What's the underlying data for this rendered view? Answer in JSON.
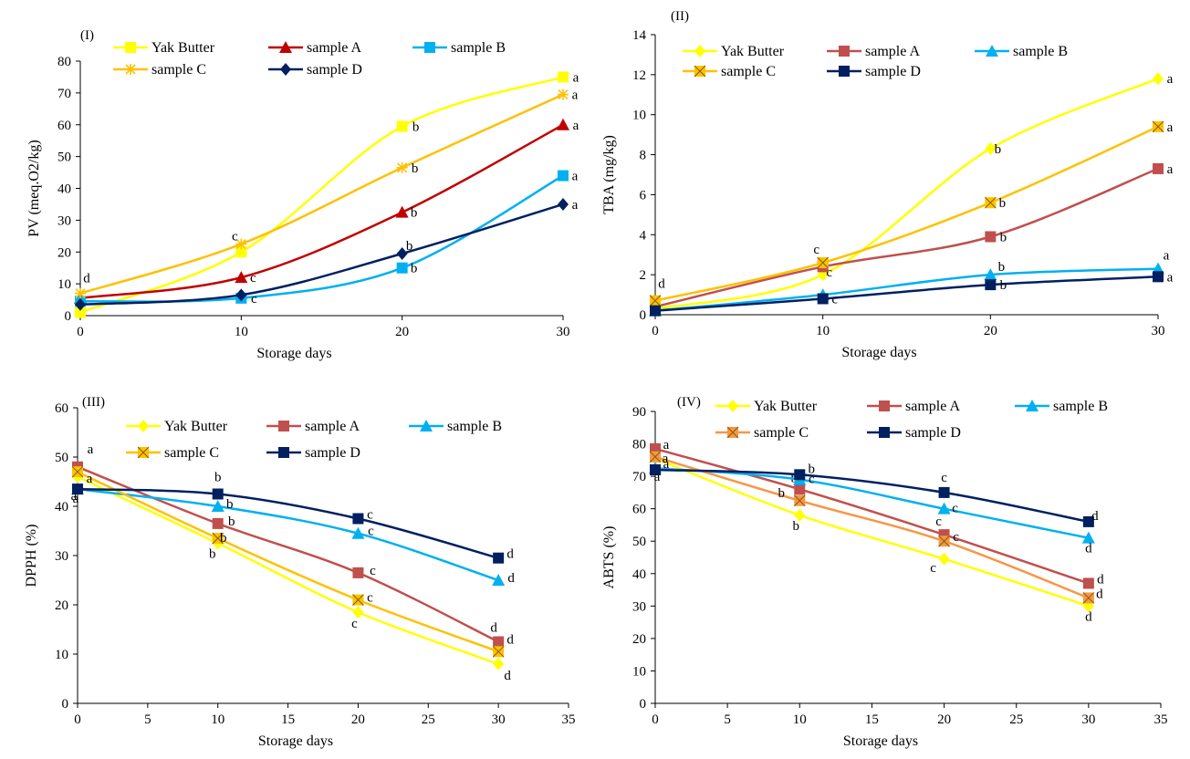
{
  "chart_data": [
    {
      "type": "line",
      "panel_label": "(I)",
      "xlabel": "Storage days",
      "ylabel": "PV (meq.O2/kg)",
      "xlim": [
        0,
        30
      ],
      "ylim": [
        0,
        80
      ],
      "xticks": [
        0,
        10,
        20,
        30
      ],
      "yticks": [
        0,
        10,
        20,
        30,
        40,
        50,
        60,
        70,
        80
      ],
      "grid": false,
      "legend_position": "top",
      "x": [
        0,
        10,
        20,
        30
      ],
      "series": [
        {
          "name": "Yak Butter",
          "color": "#FFFF00",
          "marker": "square",
          "values": [
            1,
            20,
            59.5,
            75
          ],
          "labels": [
            "",
            "",
            "b",
            "a"
          ]
        },
        {
          "name": "sample A",
          "color": "#C00000",
          "marker": "triangle",
          "values": [
            5.5,
            12,
            32.5,
            60
          ],
          "labels": [
            "",
            "c",
            "b",
            "a"
          ]
        },
        {
          "name": "sample B",
          "color": "#00B0F0",
          "marker": "square",
          "values": [
            4.5,
            5.5,
            15,
            44
          ],
          "labels": [
            "",
            "c",
            "b",
            "a"
          ]
        },
        {
          "name": "sample C",
          "color": "#FFC000",
          "marker": "star",
          "values": [
            7,
            22.5,
            46.5,
            69.5
          ],
          "labels": [
            "d",
            "c",
            "b",
            "a"
          ]
        },
        {
          "name": "sample D",
          "color": "#002060",
          "marker": "diamond",
          "values": [
            3.5,
            6.5,
            19.5,
            35
          ],
          "labels": [
            "",
            "",
            "b",
            "a"
          ]
        }
      ]
    },
    {
      "type": "line",
      "panel_label": "(II)",
      "xlabel": "Storage days",
      "ylabel": "TBA (mg/kg)",
      "xlim": [
        0,
        30
      ],
      "ylim": [
        0,
        14
      ],
      "xticks": [
        0,
        10,
        20,
        30
      ],
      "yticks": [
        0,
        2,
        4,
        6,
        8,
        10,
        12,
        14
      ],
      "grid": false,
      "legend_position": "top",
      "x": [
        0,
        10,
        20,
        30
      ],
      "series": [
        {
          "name": "Yak Butter",
          "color": "#FFFF00",
          "marker": "diamond",
          "values": [
            0.3,
            2.0,
            8.3,
            11.8
          ],
          "labels": [
            "",
            "c",
            "b",
            "a"
          ]
        },
        {
          "name": "sample A",
          "color": "#C0504D",
          "marker": "square",
          "values": [
            0.4,
            2.4,
            3.9,
            7.3
          ],
          "labels": [
            "",
            "",
            "b",
            "a"
          ]
        },
        {
          "name": "sample B",
          "color": "#00B0F0",
          "marker": "triangle",
          "values": [
            0.2,
            1.0,
            2.0,
            2.3
          ],
          "labels": [
            "",
            "",
            "b",
            "a"
          ]
        },
        {
          "name": "sample C",
          "color": "#FFC000",
          "marker": "xsquare",
          "values": [
            0.7,
            2.6,
            5.6,
            9.4
          ],
          "labels": [
            "d",
            "c",
            "b",
            "a"
          ]
        },
        {
          "name": "sample D",
          "color": "#002060",
          "marker": "square",
          "values": [
            0.2,
            0.8,
            1.5,
            1.9
          ],
          "labels": [
            "",
            "c",
            "b",
            "a"
          ]
        }
      ]
    },
    {
      "type": "line",
      "panel_label": "(III)",
      "xlabel": "Storage days",
      "ylabel": "DPPH (%)",
      "xlim": [
        0,
        35
      ],
      "ylim": [
        0,
        60
      ],
      "xticks": [
        0,
        5,
        10,
        15,
        20,
        25,
        30,
        35
      ],
      "yticks": [
        0,
        10,
        20,
        30,
        40,
        50,
        60
      ],
      "grid": false,
      "legend_position": "top",
      "x": [
        0,
        10,
        20,
        30
      ],
      "series": [
        {
          "name": "Yak Butter",
          "color": "#FFFF00",
          "marker": "diamond",
          "values": [
            46,
            32.5,
            18.5,
            8
          ],
          "labels": [
            "",
            "b",
            "c",
            "d"
          ]
        },
        {
          "name": "sample A",
          "color": "#C0504D",
          "marker": "square",
          "values": [
            48,
            36.5,
            26.5,
            12.5
          ],
          "labels": [
            "a",
            "b",
            "c",
            "d"
          ]
        },
        {
          "name": "sample B",
          "color": "#00B0F0",
          "marker": "triangle",
          "values": [
            43.5,
            40,
            34.5,
            25
          ],
          "labels": [
            "a",
            "b",
            "c",
            "d"
          ]
        },
        {
          "name": "sample C",
          "color": "#FFC000",
          "marker": "xsquare",
          "values": [
            47,
            33.5,
            21,
            10.5
          ],
          "labels": [
            "a",
            "b",
            "c",
            "d"
          ]
        },
        {
          "name": "sample D",
          "color": "#002060",
          "marker": "square",
          "values": [
            43.5,
            42.5,
            37.5,
            29.5
          ],
          "labels": [
            "a",
            "b",
            "c",
            "d"
          ]
        }
      ]
    },
    {
      "type": "line",
      "panel_label": "(IV)",
      "xlabel": "Storage days",
      "ylabel": "ABTS (%)",
      "xlim": [
        0,
        35
      ],
      "ylim": [
        0,
        90
      ],
      "xticks": [
        0,
        5,
        10,
        15,
        20,
        25,
        30,
        35
      ],
      "yticks": [
        0,
        10,
        20,
        30,
        40,
        50,
        60,
        70,
        80,
        90
      ],
      "grid": false,
      "legend_position": "top",
      "x": [
        0,
        10,
        20,
        30
      ],
      "series": [
        {
          "name": "Yak Butter",
          "color": "#FFFF00",
          "marker": "diamond",
          "values": [
            75.5,
            58,
            44.5,
            30
          ],
          "labels": [
            "",
            "b",
            "c",
            "d"
          ]
        },
        {
          "name": "sample A",
          "color": "#C0504D",
          "marker": "square",
          "values": [
            78.5,
            66,
            52,
            37
          ],
          "labels": [
            "a",
            "b",
            "c",
            "d"
          ]
        },
        {
          "name": "sample B",
          "color": "#00B0F0",
          "marker": "triangle",
          "values": [
            72.5,
            69,
            60,
            51
          ],
          "labels": [
            "a",
            "c",
            "c",
            "d"
          ]
        },
        {
          "name": "sample C",
          "color": "#F79646",
          "marker": "xsquare",
          "values": [
            76,
            62.5,
            50,
            32.5
          ],
          "labels": [
            "a",
            "b",
            "c",
            "d"
          ]
        },
        {
          "name": "sample D",
          "color": "#002060",
          "marker": "square",
          "values": [
            72,
            70.5,
            65,
            56
          ],
          "labels": [
            "a",
            "b",
            "c",
            "d"
          ]
        }
      ]
    }
  ]
}
